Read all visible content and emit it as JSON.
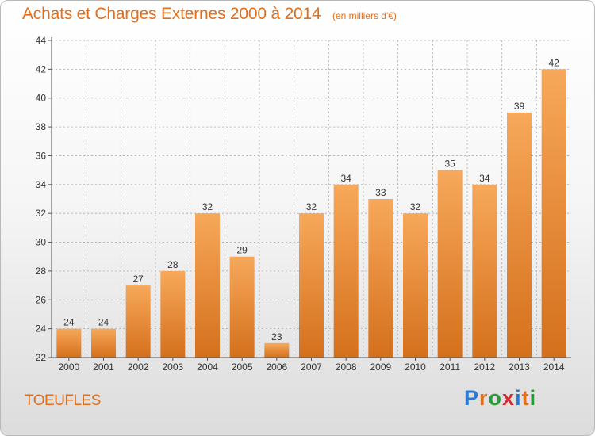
{
  "header": {
    "title": "Achats et Charges Externes 2000 à 2014",
    "subtitle": "(en milliers d'€)"
  },
  "place_name": "TOEUFLES",
  "logo": {
    "text": "Proxiti",
    "letter_colors": [
      "#2b7bd6",
      "#e0701e",
      "#2b9a3a",
      "#d6262e",
      "#2b7bd6",
      "#e0701e",
      "#2b9a3a"
    ]
  },
  "colors": {
    "title": "#e0701e",
    "bar_top": "#f7a85a",
    "bar_bottom": "#d4701c",
    "axis": "#555555",
    "grid": "#aaaaaa"
  },
  "chart_data": {
    "type": "bar",
    "title": "Achats et Charges Externes 2000 à 2014",
    "subtitle": "(en milliers d'€)",
    "xlabel": "",
    "ylabel": "",
    "categories": [
      "2000",
      "2001",
      "2002",
      "2003",
      "2004",
      "2005",
      "2006",
      "2007",
      "2008",
      "2009",
      "2010",
      "2011",
      "2012",
      "2013",
      "2014"
    ],
    "values": [
      24,
      24,
      27,
      28,
      32,
      29,
      23,
      32,
      34,
      33,
      32,
      35,
      34,
      39,
      42
    ],
    "ylim": [
      22,
      44
    ],
    "yticks": [
      22,
      24,
      26,
      28,
      30,
      32,
      34,
      36,
      38,
      40,
      42,
      44
    ],
    "grid": "horizontal dashed",
    "legend": "none"
  }
}
